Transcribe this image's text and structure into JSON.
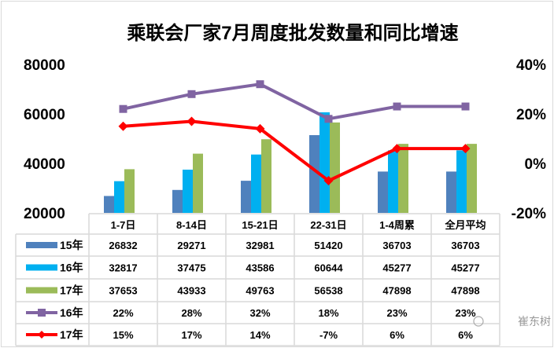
{
  "chart_data": {
    "type": "bar+line",
    "title": "乘联会厂家7月周度批发数量和同比增速",
    "categories": [
      "1-7日",
      "8-14日",
      "15-21日",
      "22-31日",
      "1-4周累",
      "全月平均"
    ],
    "y_left": {
      "ylim": [
        20000,
        80000
      ],
      "ticks": [
        "20000",
        "40000",
        "60000",
        "80000"
      ],
      "tick_values": [
        20000,
        40000,
        60000,
        80000
      ]
    },
    "y_right": {
      "ylim": [
        -20,
        40
      ],
      "ticks": [
        "-20%",
        "0%",
        "20%",
        "40%"
      ],
      "tick_values": [
        -20,
        0,
        20,
        40
      ]
    },
    "bar_series": [
      {
        "name": "15年",
        "color": "#4f81bd",
        "values": [
          26832,
          29271,
          32981,
          51420,
          36703,
          36703
        ]
      },
      {
        "name": "16年",
        "color": "#00b0f0",
        "values": [
          32817,
          37475,
          43586,
          60644,
          45277,
          45277
        ]
      },
      {
        "name": "17年",
        "color": "#9bbb59",
        "values": [
          37653,
          43933,
          49763,
          56538,
          47898,
          47898
        ]
      }
    ],
    "line_series": [
      {
        "name": "16年",
        "color": "#8064a2",
        "marker": "square",
        "values": [
          22,
          28,
          32,
          18,
          23,
          23
        ],
        "labels": [
          "22%",
          "28%",
          "32%",
          "18%",
          "23%",
          "23%"
        ]
      },
      {
        "name": "17年",
        "color": "#ff0000",
        "marker": "diamond",
        "values": [
          15,
          17,
          14,
          -7,
          6,
          6
        ],
        "labels": [
          "15%",
          "17%",
          "14%",
          "-7%",
          "6%",
          "6%"
        ]
      }
    ],
    "data_table": true,
    "legend": "data-table"
  },
  "watermark": "崔东树"
}
